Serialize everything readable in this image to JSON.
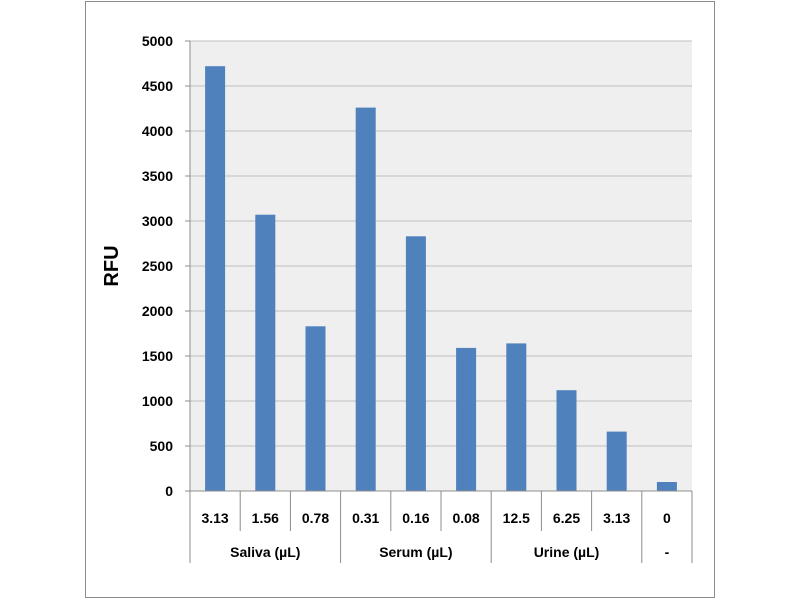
{
  "chart_data": {
    "type": "bar",
    "ylabel": "RFU",
    "ylim": [
      0,
      5000
    ],
    "yticks": [
      0,
      500,
      1000,
      1500,
      2000,
      2500,
      3000,
      3500,
      4000,
      4500,
      5000
    ],
    "grid": true,
    "legend": "none",
    "categories": [
      "3.13",
      "1.56",
      "0.78",
      "0.31",
      "0.16",
      "0.08",
      "12.5",
      "6.25",
      "3.13",
      "0"
    ],
    "values": [
      4720,
      3070,
      1830,
      4260,
      2830,
      1590,
      1640,
      1120,
      660,
      100
    ],
    "groups": [
      {
        "label": "Saliva (µL)",
        "count": 3
      },
      {
        "label": "Serum (µL)",
        "count": 3
      },
      {
        "label": "Urine (µL)",
        "count": 3
      },
      {
        "label": "-",
        "count": 1
      }
    ],
    "colors": {
      "bar": "#4f81bd",
      "plot_bg": "#efefef",
      "grid": "#bfbfbf",
      "axis": "#8c8c8c",
      "text": "#000000"
    }
  }
}
